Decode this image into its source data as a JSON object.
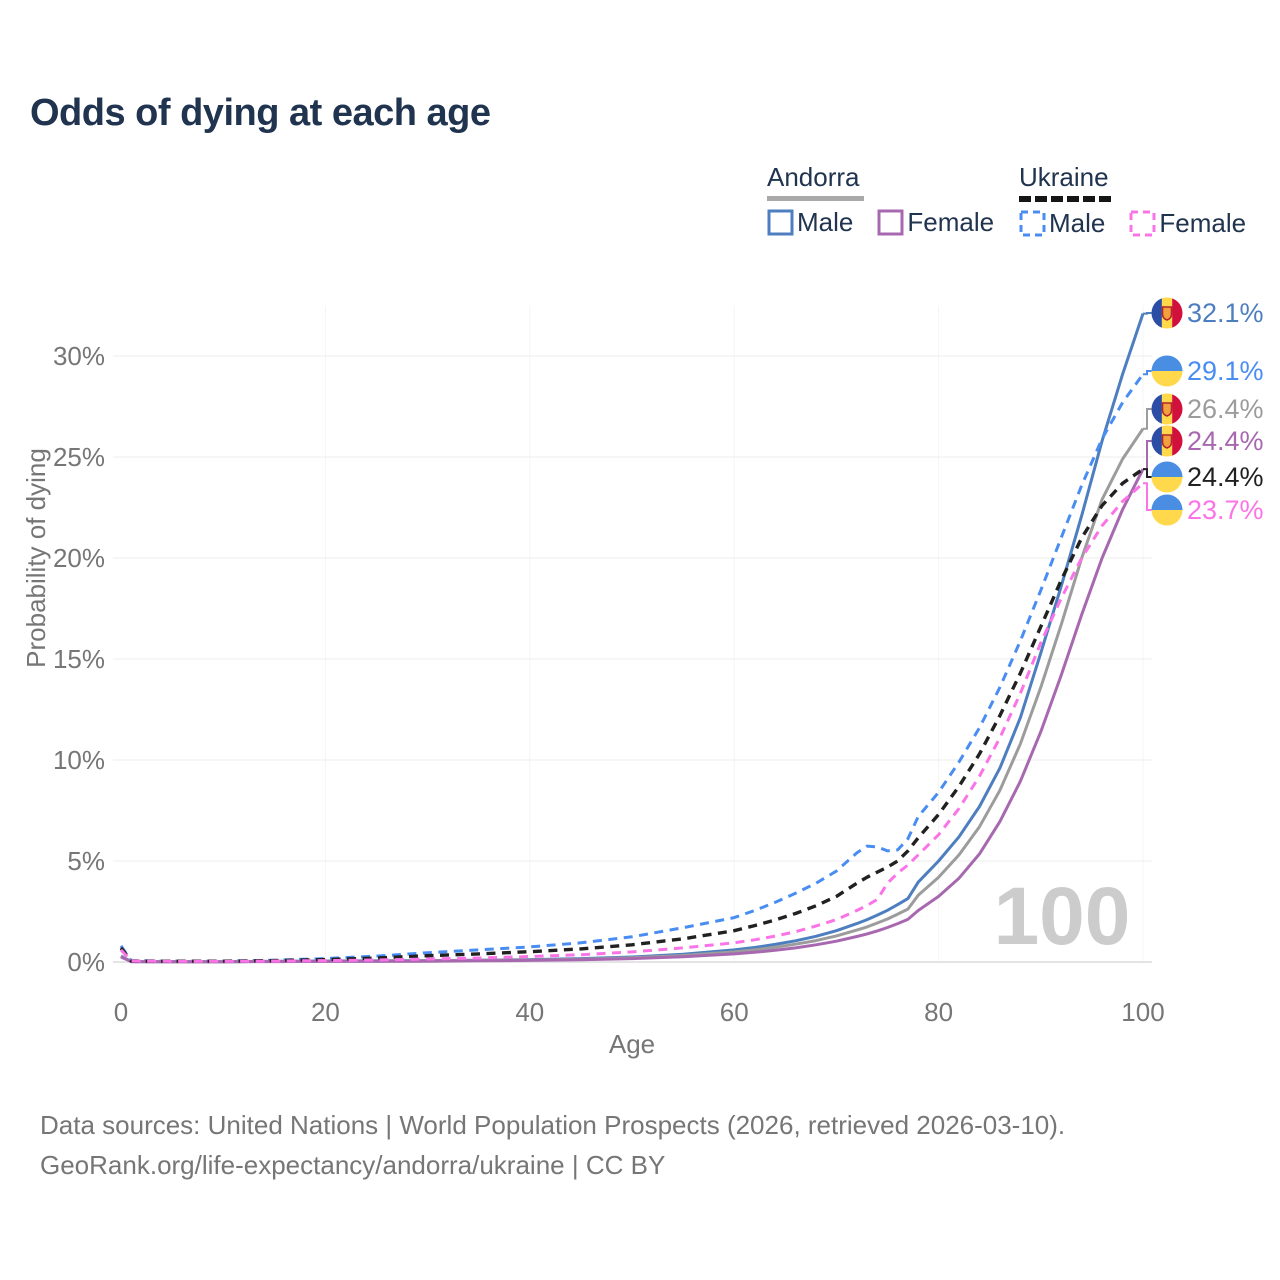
{
  "header": {
    "title": "Odds of dying at each age"
  },
  "legend": {
    "groups": [
      {
        "label": "Andorra",
        "line_style": "solid",
        "underline_color": "#a9a9a9",
        "items": [
          {
            "label": "Male",
            "series": "andorra-male"
          },
          {
            "label": "Female",
            "series": "andorra-female"
          }
        ]
      },
      {
        "label": "Ukraine",
        "line_style": "dashed",
        "underline_color": "#161616",
        "items": [
          {
            "label": "Male",
            "series": "ukraine-male"
          },
          {
            "label": "Female",
            "series": "ukraine-female"
          }
        ]
      }
    ]
  },
  "footer": {
    "line1": "Data sources: United Nations | World Population Prospects (2026, retrieved 2026-03-10).",
    "line2": "GeoRank.org/life-expectancy/andorra/ukraine | CC BY"
  },
  "chart_data": {
    "type": "line",
    "title": "Odds of dying at each age",
    "xlabel": "Age",
    "ylabel": "Probability of dying",
    "xlim": [
      0,
      100
    ],
    "ylim_pct": [
      0,
      32.5
    ],
    "x_ticks": [
      0,
      20,
      40,
      60,
      80,
      100
    ],
    "y_ticks_pct": [
      0,
      5,
      10,
      15,
      20,
      25,
      30
    ],
    "y_tick_suffix": "%",
    "grid": true,
    "legend_position": "top-right",
    "watermark": "100",
    "x": [
      0,
      1,
      5,
      10,
      15,
      20,
      25,
      30,
      35,
      40,
      45,
      50,
      55,
      60,
      62,
      64,
      66,
      68,
      70,
      72,
      73,
      74,
      75,
      76,
      77,
      78,
      80,
      82,
      84,
      86,
      88,
      90,
      92,
      94,
      96,
      98,
      100
    ],
    "series": [
      {
        "id": "andorra-male",
        "name": "Andorra Male",
        "country": "Andorra",
        "sex": "Male",
        "color": "#4d7ec0",
        "dash": "solid",
        "width": 3,
        "end_label": "32.1%",
        "end_value_pct": 32.1,
        "values_pct": [
          0.3,
          0.02,
          0.01,
          0.01,
          0.03,
          0.05,
          0.06,
          0.07,
          0.09,
          0.12,
          0.17,
          0.25,
          0.38,
          0.6,
          0.72,
          0.87,
          1.05,
          1.27,
          1.55,
          1.9,
          2.1,
          2.32,
          2.56,
          2.84,
          3.14,
          3.95,
          5.0,
          6.2,
          7.7,
          9.6,
          12.1,
          15.3,
          18.6,
          22.1,
          25.8,
          29.1,
          32.1
        ]
      },
      {
        "id": "ukraine-male",
        "name": "Ukraine Male",
        "country": "Ukraine",
        "sex": "Male",
        "color": "#4a8df2",
        "dash": "dashed",
        "width": 3,
        "end_label": "29.1%",
        "end_value_pct": 29.1,
        "values_pct": [
          0.8,
          0.06,
          0.04,
          0.04,
          0.09,
          0.17,
          0.29,
          0.46,
          0.6,
          0.75,
          0.95,
          1.25,
          1.7,
          2.2,
          2.55,
          2.95,
          3.4,
          3.9,
          4.5,
          5.4,
          5.74,
          5.7,
          5.5,
          5.55,
          6.1,
          7.2,
          8.4,
          9.9,
          11.6,
          13.6,
          15.9,
          18.4,
          21.0,
          23.6,
          25.9,
          27.7,
          29.1
        ]
      },
      {
        "id": "andorra-both",
        "name": "Andorra (both sexes)",
        "country": "Andorra",
        "sex": "Both",
        "color": "#9c9c9c",
        "dash": "solid",
        "width": 3,
        "end_label": "26.4%",
        "end_value_pct": 26.4,
        "values_pct": [
          0.28,
          0.02,
          0.01,
          0.01,
          0.03,
          0.04,
          0.05,
          0.06,
          0.08,
          0.1,
          0.14,
          0.21,
          0.32,
          0.5,
          0.6,
          0.73,
          0.88,
          1.06,
          1.29,
          1.58,
          1.74,
          1.93,
          2.13,
          2.37,
          2.62,
          3.3,
          4.2,
          5.3,
          6.7,
          8.5,
          10.8,
          13.6,
          16.7,
          20.0,
          22.9,
          24.9,
          26.4
        ]
      },
      {
        "id": "andorra-female",
        "name": "Andorra Female",
        "country": "Andorra",
        "sex": "Female",
        "color": "#a868b0",
        "dash": "solid",
        "width": 3,
        "end_label": "24.4%",
        "end_value_pct": 24.4,
        "values_pct": [
          0.25,
          0.02,
          0.01,
          0.01,
          0.02,
          0.03,
          0.03,
          0.04,
          0.06,
          0.08,
          0.11,
          0.17,
          0.26,
          0.4,
          0.48,
          0.58,
          0.7,
          0.85,
          1.03,
          1.26,
          1.39,
          1.54,
          1.71,
          1.9,
          2.11,
          2.55,
          3.25,
          4.15,
          5.35,
          6.95,
          8.95,
          11.4,
          14.2,
          17.2,
          20.0,
          22.4,
          24.4
        ]
      },
      {
        "id": "ukraine-both",
        "name": "Ukraine (both sexes)",
        "country": "Ukraine",
        "sex": "Both",
        "color": "#212121",
        "dash": "dashed",
        "width": 3.4,
        "end_label": "24.4%",
        "end_value_pct": 24.4,
        "values_pct": [
          0.7,
          0.05,
          0.04,
          0.04,
          0.07,
          0.12,
          0.2,
          0.31,
          0.4,
          0.51,
          0.65,
          0.85,
          1.15,
          1.55,
          1.8,
          2.08,
          2.4,
          2.78,
          3.25,
          3.9,
          4.2,
          4.45,
          4.7,
          5.0,
          5.5,
          6.15,
          7.3,
          8.7,
          10.3,
          12.2,
          14.3,
          16.6,
          18.9,
          21.0,
          22.6,
          23.7,
          24.4
        ]
      },
      {
        "id": "ukraine-female",
        "name": "Ukraine Female",
        "country": "Ukraine",
        "sex": "Female",
        "color": "#fb74e7",
        "dash": "dashed",
        "width": 3,
        "end_label": "23.7%",
        "end_value_pct": 23.7,
        "values_pct": [
          0.6,
          0.05,
          0.03,
          0.03,
          0.05,
          0.07,
          0.1,
          0.15,
          0.2,
          0.27,
          0.36,
          0.5,
          0.7,
          0.95,
          1.1,
          1.28,
          1.5,
          1.78,
          2.1,
          2.55,
          2.8,
          3.1,
          3.9,
          4.4,
          4.8,
          5.3,
          6.3,
          7.6,
          9.2,
          11.1,
          13.3,
          15.8,
          18.0,
          20.0,
          21.6,
          22.8,
          23.7
        ]
      }
    ],
    "flags": {
      "andorra": {
        "blue": "#2b4da5",
        "yellow": "#ffd94a",
        "red": "#d2103c",
        "emblem_fill": "#f0a13c",
        "emblem_border": "#b3222e"
      },
      "ukraine": {
        "blue": "#4a8ee4",
        "yellow": "#ffd84c"
      }
    },
    "colors": {
      "gridline": "#ededed",
      "baseline": "#dcdcdc",
      "tick_text": "#767676",
      "watermark": "#cccccc"
    }
  }
}
